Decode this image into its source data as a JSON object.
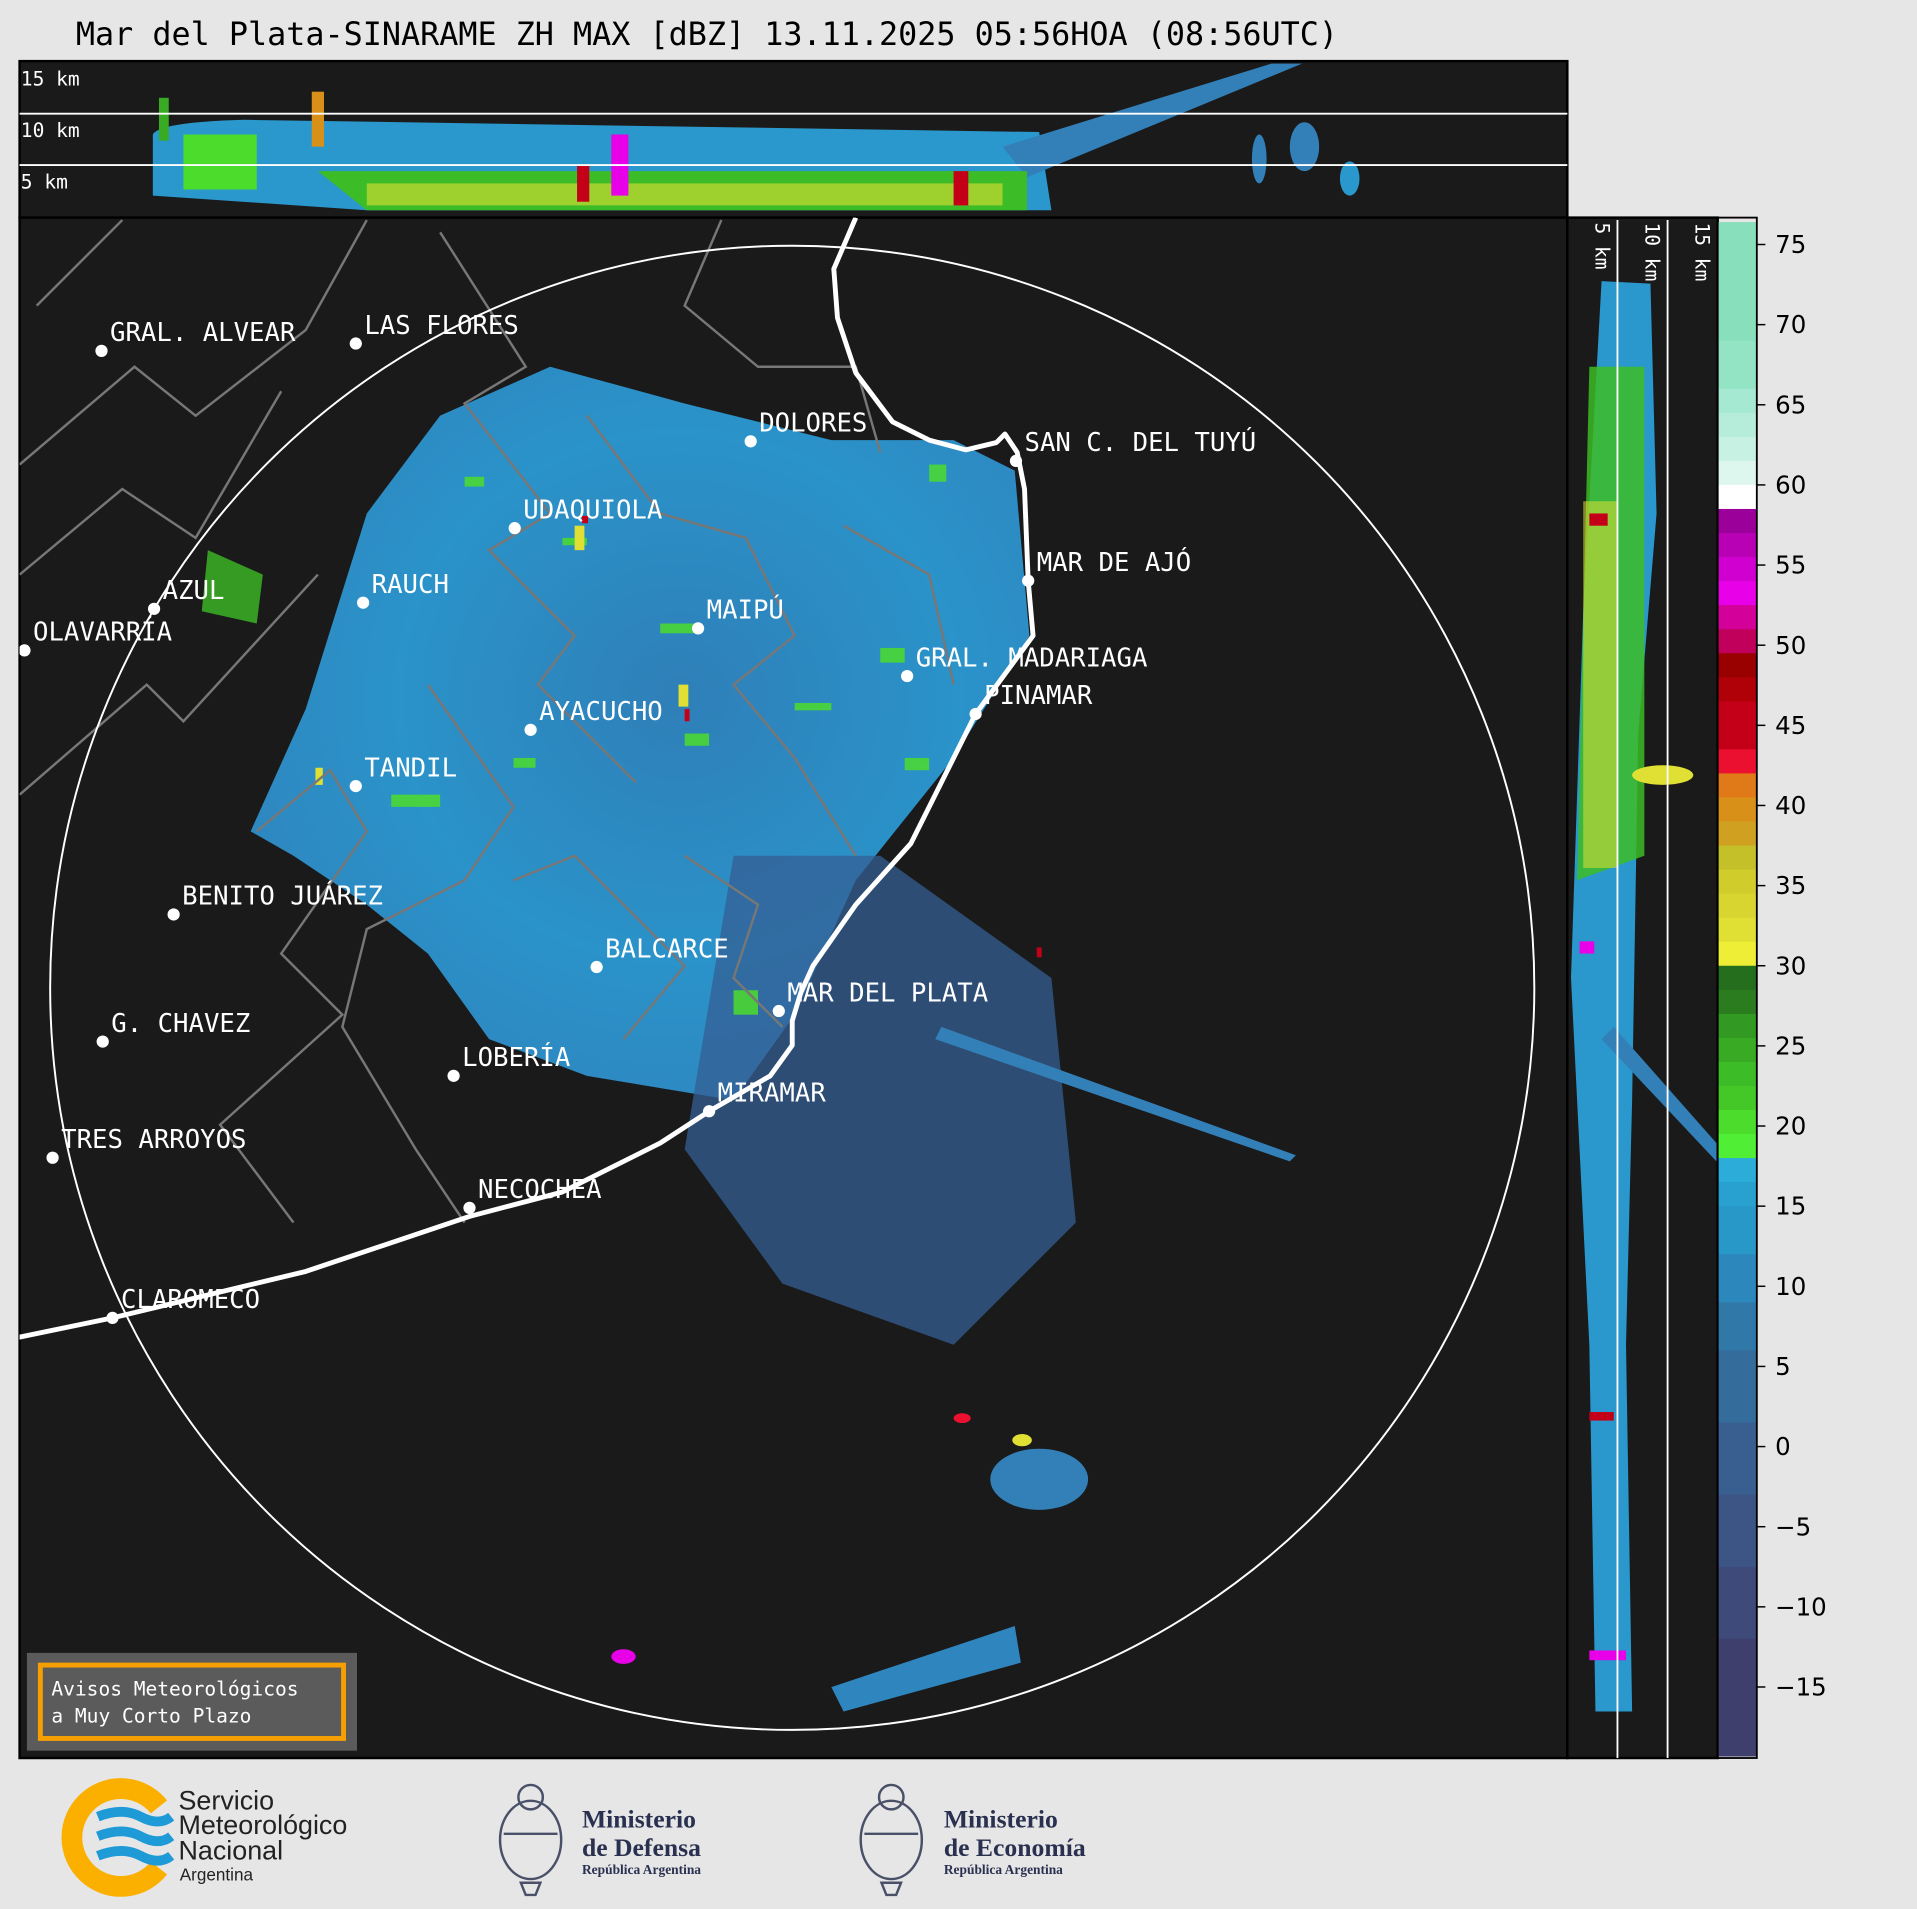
{
  "title": "Mar del Plata-SINARAME ZH MAX [dBZ] 13.11.2025 05:56HOA (08:56UTC)",
  "top_panel": {
    "height_labels": [
      "15 km",
      "10 km",
      "5 km"
    ]
  },
  "side_panel": {
    "height_labels": [
      "5 km",
      "10 km",
      "15 km"
    ]
  },
  "cities": [
    {
      "name": "GRAL. ALVEAR"
    },
    {
      "name": "LAS FLORES"
    },
    {
      "name": "DOLORES"
    },
    {
      "name": "SAN C. DEL TUYÚ"
    },
    {
      "name": "UDAQUIOLA"
    },
    {
      "name": "MAR DE AJÓ"
    },
    {
      "name": "AZUL"
    },
    {
      "name": "RAUCH"
    },
    {
      "name": "OLAVARRÍA"
    },
    {
      "name": "MAIPÚ"
    },
    {
      "name": "GRAL. MADARIAGA"
    },
    {
      "name": "PINAMAR"
    },
    {
      "name": "AYACUCHO"
    },
    {
      "name": "TANDIL"
    },
    {
      "name": "BENITO JUÁREZ"
    },
    {
      "name": "BALCARCE"
    },
    {
      "name": "MAR DEL PLATA"
    },
    {
      "name": "G. CHAVEZ"
    },
    {
      "name": "LOBERÍA"
    },
    {
      "name": "MIRAMAR"
    },
    {
      "name": "TRES ARROYOS"
    },
    {
      "name": "NECOCHEA"
    },
    {
      "name": "CLAROMECO"
    }
  ],
  "alert_box": {
    "line1": "Avisos Meteorológicos",
    "line2": "a Muy Corto Plazo",
    "border_color": "#f5a000"
  },
  "colorbar": {
    "unit": "dBZ",
    "range": [
      -19.3,
      76.4
    ],
    "ticks": [
      "75",
      "70",
      "65",
      "60",
      "55",
      "50",
      "45",
      "40",
      "35",
      "30",
      "25",
      "20",
      "15",
      "10",
      "5",
      "0",
      "−5",
      "−10",
      "−15"
    ],
    "tick_values": [
      75,
      70,
      65,
      60,
      55,
      50,
      45,
      40,
      35,
      30,
      25,
      20,
      15,
      10,
      5,
      0,
      -5,
      -10,
      -15
    ],
    "bands": [
      {
        "from": 69,
        "to": 76.4,
        "color": "#88dfbc"
      },
      {
        "from": 66,
        "to": 69,
        "color": "#93e3c5"
      },
      {
        "from": 64.5,
        "to": 66,
        "color": "#a6e9d2"
      },
      {
        "from": 63,
        "to": 64.5,
        "color": "#b5edda"
      },
      {
        "from": 61.5,
        "to": 63,
        "color": "#c7f1e3"
      },
      {
        "from": 60,
        "to": 61.5,
        "color": "#ddf6ee"
      },
      {
        "from": 58.5,
        "to": 60,
        "color": "#ffffff"
      },
      {
        "from": 57,
        "to": 58.5,
        "color": "#9b009b"
      },
      {
        "from": 55.5,
        "to": 57,
        "color": "#b800b5"
      },
      {
        "from": 54,
        "to": 55.5,
        "color": "#d000d0"
      },
      {
        "from": 52.5,
        "to": 54,
        "color": "#e800e8"
      },
      {
        "from": 51,
        "to": 52.5,
        "color": "#d4009a"
      },
      {
        "from": 49.5,
        "to": 51,
        "color": "#c0005a"
      },
      {
        "from": 48,
        "to": 49.5,
        "color": "#990000"
      },
      {
        "from": 46.5,
        "to": 48,
        "color": "#b00008"
      },
      {
        "from": 43.5,
        "to": 46.5,
        "color": "#c40018"
      },
      {
        "from": 42,
        "to": 43.5,
        "color": "#ec1030"
      },
      {
        "from": 40.5,
        "to": 42,
        "color": "#e07a18"
      },
      {
        "from": 39,
        "to": 40.5,
        "color": "#d89018"
      },
      {
        "from": 37.5,
        "to": 39,
        "color": "#d0a020"
      },
      {
        "from": 36,
        "to": 37.5,
        "color": "#c4c02a"
      },
      {
        "from": 34.5,
        "to": 36,
        "color": "#d0cc2c"
      },
      {
        "from": 33,
        "to": 34.5,
        "color": "#d8d430"
      },
      {
        "from": 31.5,
        "to": 33,
        "color": "#e0e034"
      },
      {
        "from": 30,
        "to": 31.5,
        "color": "#eeee36"
      },
      {
        "from": 28.5,
        "to": 30,
        "color": "#246e1e"
      },
      {
        "from": 27,
        "to": 28.5,
        "color": "#2a7c1e"
      },
      {
        "from": 25.5,
        "to": 27,
        "color": "#329a22"
      },
      {
        "from": 24,
        "to": 25.5,
        "color": "#38aa24"
      },
      {
        "from": 22.5,
        "to": 24,
        "color": "#3cbc26"
      },
      {
        "from": 21,
        "to": 22.5,
        "color": "#44c828"
      },
      {
        "from": 19.5,
        "to": 21,
        "color": "#4cdc2c"
      },
      {
        "from": 18,
        "to": 19.5,
        "color": "#50ee34"
      },
      {
        "from": 16.5,
        "to": 18,
        "color": "#2cacd8"
      },
      {
        "from": 15,
        "to": 16.5,
        "color": "#28a0d0"
      },
      {
        "from": 12,
        "to": 15,
        "color": "#2898c8"
      },
      {
        "from": 9,
        "to": 12,
        "color": "#2c88bc"
      },
      {
        "from": 6,
        "to": 9,
        "color": "#3078a8"
      },
      {
        "from": 1.5,
        "to": 6,
        "color": "#346c9c"
      },
      {
        "from": -3,
        "to": 1.5,
        "color": "#385f90"
      },
      {
        "from": -7.5,
        "to": -3,
        "color": "#3c5585"
      },
      {
        "from": -12,
        "to": -7.5,
        "color": "#3e4a7a"
      },
      {
        "from": -19.3,
        "to": -12,
        "color": "#3e3f6c"
      }
    ]
  },
  "logos": {
    "smn": {
      "line1": "Servicio",
      "line2": "Meteorológico",
      "line3": "Nacional",
      "line4": "Argentina",
      "orange": "#fbb000",
      "blue": "#1e9ad6"
    },
    "defensa": {
      "line1": "Ministerio",
      "line2": "de Defensa",
      "line3": "República Argentina"
    },
    "economia": {
      "line1": "Ministerio",
      "line2": "de Economía",
      "line3": "República Argentina"
    }
  }
}
